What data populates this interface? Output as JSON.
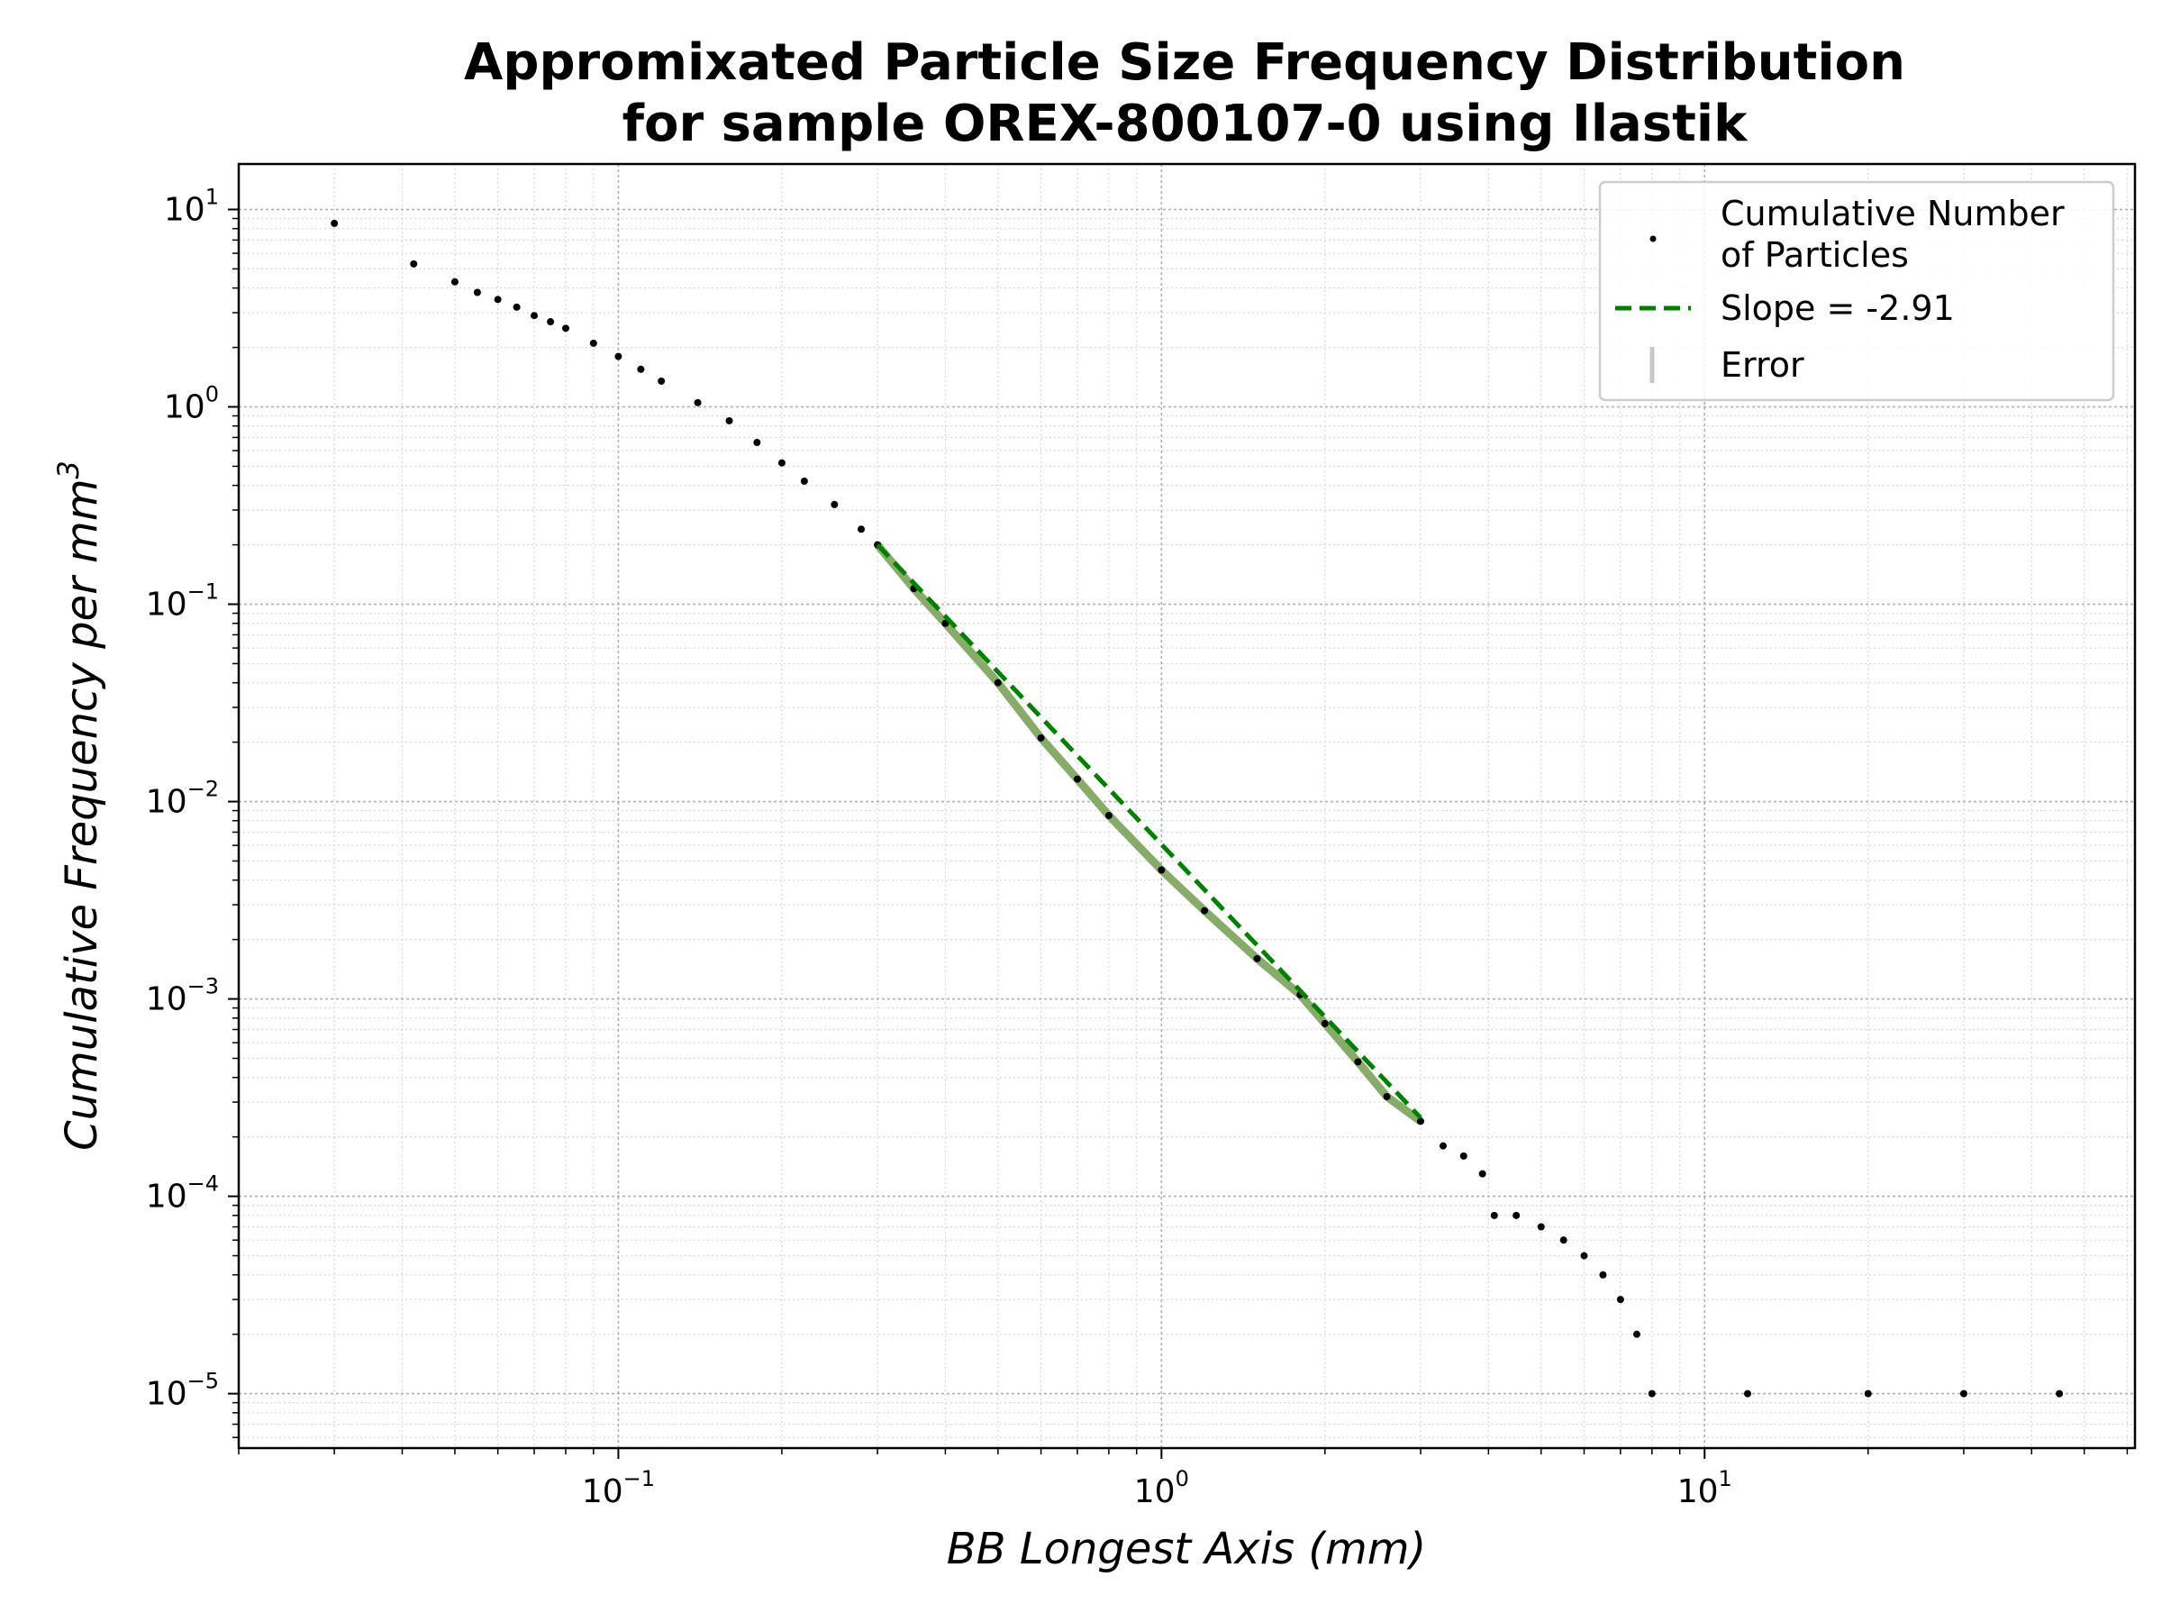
{
  "chart_data": {
    "type": "scatter",
    "title": [
      "Appromixated Particle Size Frequency Distribution",
      "for sample OREX-800107-0 using Ilastik"
    ],
    "xlabel": "BB Longest Axis (mm)",
    "ylabel": "Cumulative Frequency per mm",
    "ylabel_sup": "3",
    "xscale": "log",
    "yscale": "log",
    "xlim": [
      0.02,
      62
    ],
    "ylim": [
      5.3e-06,
      17
    ],
    "grid": true,
    "legend_placement": "top-right",
    "x_ticks": [
      {
        "base": "10",
        "exp": "−1",
        "value": 0.1
      },
      {
        "base": "10",
        "exp": "0",
        "value": 1
      },
      {
        "base": "10",
        "exp": "1",
        "value": 10
      }
    ],
    "y_ticks": [
      {
        "base": "10",
        "exp": "1",
        "value": 10
      },
      {
        "base": "10",
        "exp": "0",
        "value": 1
      },
      {
        "base": "10",
        "exp": "−1",
        "value": 0.1
      },
      {
        "base": "10",
        "exp": "−2",
        "value": 0.01
      },
      {
        "base": "10",
        "exp": "−3",
        "value": 0.001
      },
      {
        "base": "10",
        "exp": "−4",
        "value": 0.0001
      },
      {
        "base": "10",
        "exp": "−5",
        "value": 1e-05
      }
    ],
    "series": [
      {
        "name": "Cumulative Number\nof Particles",
        "kind": "points",
        "color": "#000000",
        "x": [
          0.03,
          0.042,
          0.05,
          0.055,
          0.06,
          0.065,
          0.07,
          0.075,
          0.08,
          0.09,
          0.1,
          0.11,
          0.12,
          0.14,
          0.16,
          0.18,
          0.2,
          0.22,
          0.25,
          0.28,
          0.3,
          0.35,
          0.4,
          0.5,
          0.6,
          0.7,
          0.8,
          1.0,
          1.2,
          1.5,
          1.8,
          2.0,
          2.3,
          2.6,
          3.0,
          3.3,
          3.6,
          3.9,
          4.1,
          4.5,
          5.0,
          5.5,
          6.0,
          6.5,
          7.0,
          7.5,
          8.0,
          12.0,
          20.0,
          30.0,
          45.0
        ],
        "y": [
          8.5,
          5.3,
          4.3,
          3.8,
          3.5,
          3.2,
          2.9,
          2.7,
          2.5,
          2.1,
          1.8,
          1.55,
          1.35,
          1.05,
          0.85,
          0.66,
          0.52,
          0.42,
          0.32,
          0.24,
          0.2,
          0.12,
          0.08,
          0.04,
          0.021,
          0.013,
          0.0085,
          0.0045,
          0.0028,
          0.0016,
          0.00105,
          0.00075,
          0.00048,
          0.00032,
          0.00024,
          0.00018,
          0.00016,
          0.00013,
          8e-05,
          8e-05,
          7e-05,
          6e-05,
          5e-05,
          4e-05,
          3e-05,
          2e-05,
          1e-05,
          1e-05,
          1e-05,
          1e-05,
          1e-05
        ]
      },
      {
        "name": "Slope = -2.91",
        "kind": "fit-line",
        "color": "#008000",
        "slope": -2.91,
        "x": [
          0.3,
          3.0
        ],
        "y": [
          0.2,
          0.00025
        ]
      },
      {
        "name": "Error",
        "kind": "errorbars",
        "color": "#c8c8c8"
      }
    ],
    "fit_band_color": "#7aa35a"
  }
}
